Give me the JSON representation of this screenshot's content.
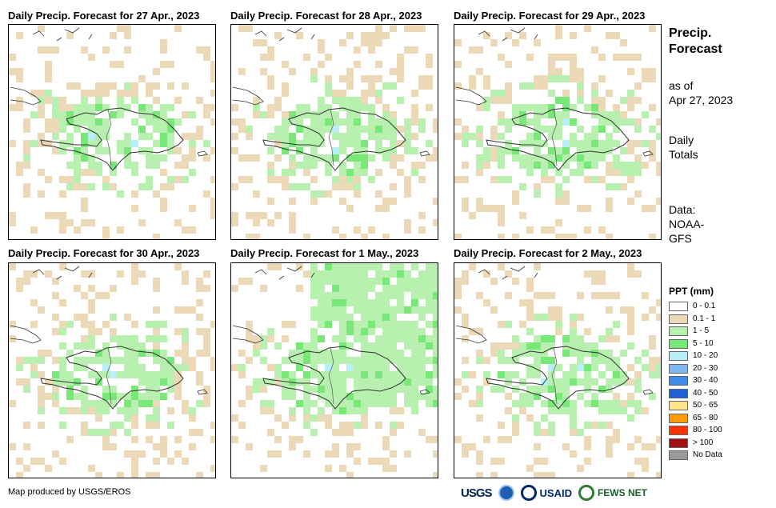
{
  "panels": [
    {
      "title": "Daily Precip. Forecast for 27 Apr., 2023",
      "seed": 1
    },
    {
      "title": "Daily Precip. Forecast for 28 Apr., 2023",
      "seed": 2
    },
    {
      "title": "Daily Precip. Forecast for 29 Apr., 2023",
      "seed": 3
    },
    {
      "title": "Daily Precip. Forecast for 30 Apr., 2023",
      "seed": 4
    },
    {
      "title": "Daily Precip. Forecast for 1 May., 2023",
      "seed": 5
    },
    {
      "title": "Daily Precip. Forecast for 2 May., 2023",
      "seed": 6
    }
  ],
  "side": {
    "title_line1": "Precip.",
    "title_line2": "Forecast",
    "asof_line1": "as of",
    "asof_line2": "Apr 27, 2023",
    "totals_line1": "Daily",
    "totals_line2": "Totals",
    "data_line1": "Data:",
    "data_line2": "NOAA-",
    "data_line3": "GFS"
  },
  "legend": {
    "title": "PPT (mm)",
    "items": [
      {
        "label": "0 - 0.1",
        "color": "#ffffff"
      },
      {
        "label": "0.1 - 1",
        "color": "#ecd9b7"
      },
      {
        "label": "1 - 5",
        "color": "#b8f0b0"
      },
      {
        "label": "5 - 10",
        "color": "#78e878"
      },
      {
        "label": "10 - 20",
        "color": "#b8eef5"
      },
      {
        "label": "20 - 30",
        "color": "#80b8f0"
      },
      {
        "label": "30 - 40",
        "color": "#3c8ce8"
      },
      {
        "label": "40 - 50",
        "color": "#1f5fd8"
      },
      {
        "label": "50 - 65",
        "color": "#ffe28a"
      },
      {
        "label": "65 - 80",
        "color": "#ff9a00"
      },
      {
        "label": "80 - 100",
        "color": "#ff3300"
      },
      {
        "label": "> 100",
        "color": "#a01010"
      },
      {
        "label": "No Data",
        "color": "#999999"
      }
    ]
  },
  "credit": "Map produced by USGS/EROS",
  "logos": {
    "usgs": "USGS",
    "usaid": "USAID",
    "fewsnet": "FEWS NET"
  }
}
